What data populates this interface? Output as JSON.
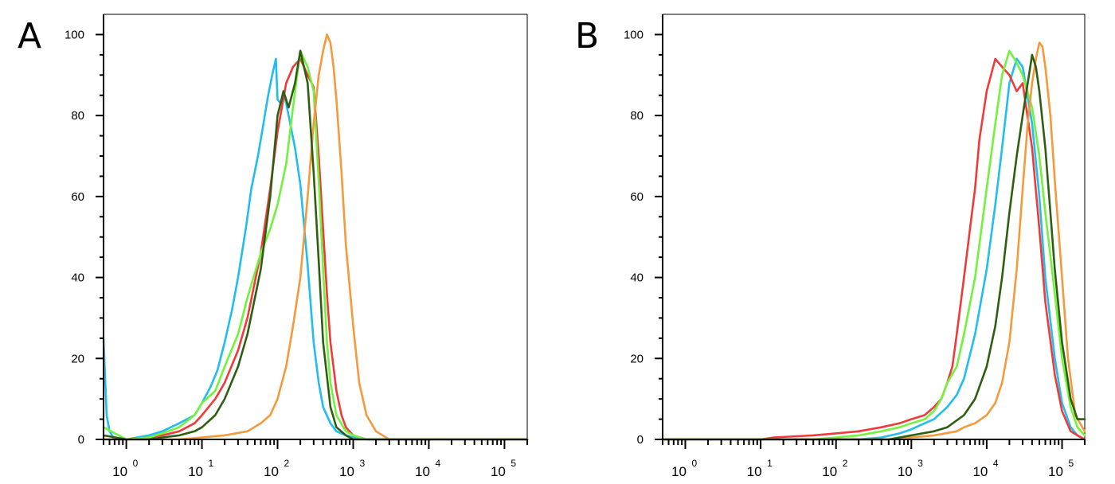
{
  "chart_data": [
    {
      "panel": "A",
      "type": "line",
      "xscale": "log",
      "xlim": [
        0.5,
        200000
      ],
      "ylim": [
        0,
        105
      ],
      "yticks": [
        "0",
        "20",
        "40",
        "60",
        "80",
        "100"
      ],
      "xticks": [
        {
          "base": "10",
          "exp": "0"
        },
        {
          "base": "10",
          "exp": "1"
        },
        {
          "base": "10",
          "exp": "2"
        },
        {
          "base": "10",
          "exp": "3"
        },
        {
          "base": "10",
          "exp": "4"
        },
        {
          "base": "10",
          "exp": "5"
        }
      ],
      "series": [
        {
          "color": "#22bdf0",
          "x": [
            0.5,
            0.55,
            0.6,
            0.7,
            1,
            2,
            3,
            5,
            8,
            10,
            13,
            16,
            20,
            25,
            30,
            38,
            45,
            55,
            65,
            75,
            85,
            95,
            100,
            110,
            120,
            140,
            170,
            200,
            250,
            300,
            350,
            400,
            500,
            600,
            800,
            1000,
            1500,
            3000,
            10000,
            200000
          ],
          "y": [
            25,
            6,
            2,
            0,
            0,
            1,
            2,
            4,
            6,
            9,
            13,
            17,
            24,
            32,
            40,
            52,
            62,
            70,
            78,
            85,
            90,
            94,
            84,
            83,
            86,
            80,
            72,
            63,
            43,
            24,
            14,
            8,
            4,
            2,
            1,
            0.5,
            0,
            0,
            0,
            0
          ]
        },
        {
          "color": "#f03a3a",
          "x": [
            0.5,
            1,
            2,
            3,
            5,
            8,
            10,
            15,
            20,
            30,
            40,
            60,
            80,
            100,
            130,
            160,
            200,
            250,
            300,
            350,
            400,
            450,
            500,
            600,
            700,
            800,
            1000,
            1500,
            3000,
            200000
          ],
          "y": [
            0,
            0,
            0.5,
            1,
            2,
            4,
            6,
            10,
            14,
            22,
            30,
            46,
            62,
            76,
            88,
            92,
            94,
            90,
            87,
            70,
            52,
            36,
            24,
            12,
            6,
            3,
            1,
            0,
            0,
            0
          ]
        },
        {
          "color": "#72f23c",
          "x": [
            0.5,
            1,
            2,
            3,
            5,
            8,
            10,
            15,
            20,
            30,
            40,
            60,
            80,
            100,
            130,
            160,
            200,
            250,
            300,
            350,
            400,
            450,
            500,
            600,
            800,
            1000,
            1500,
            200000
          ],
          "y": [
            3,
            0,
            0.5,
            1.5,
            3,
            6,
            9,
            12,
            18,
            26,
            35,
            46,
            52,
            58,
            68,
            82,
            96,
            92,
            86,
            64,
            42,
            24,
            14,
            6,
            2,
            1,
            0,
            0
          ]
        },
        {
          "color": "#f59a3c",
          "x": [
            0.5,
            1,
            2,
            5,
            10,
            20,
            40,
            60,
            80,
            100,
            130,
            160,
            200,
            250,
            300,
            350,
            400,
            450,
            500,
            550,
            600,
            700,
            800,
            1000,
            1200,
            1500,
            2000,
            3000,
            200000
          ],
          "y": [
            0,
            0,
            0,
            0,
            0.5,
            1,
            2,
            4,
            6,
            10,
            18,
            28,
            40,
            60,
            78,
            90,
            96,
            100,
            98,
            92,
            84,
            66,
            48,
            28,
            14,
            6,
            2,
            0,
            0
          ]
        },
        {
          "color": "#2e5e12",
          "x": [
            0.5,
            1,
            2,
            3,
            5,
            8,
            10,
            15,
            20,
            30,
            40,
            60,
            80,
            100,
            120,
            140,
            170,
            200,
            250,
            300,
            350,
            400,
            500,
            600,
            800,
            1000,
            200000
          ],
          "y": [
            1,
            0,
            0,
            0.5,
            1,
            2,
            3,
            6,
            10,
            18,
            26,
            42,
            60,
            80,
            86,
            82,
            88,
            96,
            88,
            66,
            44,
            24,
            8,
            3,
            1,
            0,
            0
          ]
        }
      ]
    },
    {
      "panel": "B",
      "type": "line",
      "xscale": "log",
      "xlim": [
        0.5,
        200000
      ],
      "ylim": [
        0,
        105
      ],
      "yticks": [
        "0",
        "20",
        "40",
        "60",
        "80",
        "100"
      ],
      "xticks": [
        {
          "base": "10",
          "exp": "0"
        },
        {
          "base": "10",
          "exp": "1"
        },
        {
          "base": "10",
          "exp": "2"
        },
        {
          "base": "10",
          "exp": "3"
        },
        {
          "base": "10",
          "exp": "4"
        },
        {
          "base": "10",
          "exp": "5"
        }
      ],
      "series": [
        {
          "color": "#22bdf0",
          "x": [
            0.5,
            10,
            50,
            100,
            200,
            400,
            700,
            1000,
            1500,
            2000,
            3000,
            4000,
            5000,
            7000,
            10000,
            13000,
            16000,
            20000,
            25000,
            30000,
            40000,
            50000,
            60000,
            80000,
            100000,
            130000,
            160000,
            200000
          ],
          "y": [
            0,
            0,
            0,
            0,
            0,
            0.5,
            1.5,
            2.5,
            4,
            5,
            8,
            11,
            15,
            26,
            42,
            58,
            72,
            88,
            94,
            92,
            78,
            60,
            40,
            20,
            9,
            3,
            1,
            0
          ]
        },
        {
          "color": "#f03a3a",
          "x": [
            0.5,
            10,
            15,
            50,
            100,
            200,
            400,
            700,
            1000,
            1500,
            2000,
            2500,
            3000,
            3500,
            4000,
            5000,
            6000,
            7000,
            8000,
            10000,
            13000,
            16000,
            20000,
            25000,
            30000,
            40000,
            50000,
            60000,
            80000,
            100000,
            130000,
            160000,
            200000
          ],
          "y": [
            0,
            0,
            0.5,
            1,
            1.5,
            2,
            3,
            4,
            5,
            6,
            8,
            10,
            14,
            18,
            26,
            40,
            52,
            62,
            74,
            86,
            94,
            92,
            90,
            86,
            88,
            72,
            52,
            34,
            16,
            7,
            2,
            1,
            0
          ]
        },
        {
          "color": "#72f23c",
          "x": [
            0.5,
            10,
            50,
            100,
            200,
            400,
            700,
            1000,
            1500,
            2000,
            2500,
            3000,
            4000,
            5000,
            7000,
            10000,
            13000,
            16000,
            20000,
            25000,
            30000,
            40000,
            50000,
            60000,
            80000,
            100000,
            130000,
            160000,
            200000
          ],
          "y": [
            0,
            0,
            0,
            0.5,
            1,
            2,
            3,
            4,
            5,
            7,
            10,
            14,
            18,
            26,
            40,
            62,
            78,
            90,
            96,
            93,
            90,
            82,
            70,
            56,
            36,
            20,
            8,
            3,
            1
          ]
        },
        {
          "color": "#f59a3c",
          "x": [
            0.5,
            100,
            500,
            1000,
            2000,
            4000,
            5000,
            7000,
            10000,
            13000,
            16000,
            20000,
            25000,
            30000,
            35000,
            40000,
            45000,
            50000,
            55000,
            60000,
            70000,
            80000,
            100000,
            120000,
            150000,
            200000
          ],
          "y": [
            0,
            0,
            0,
            0.5,
            1,
            2,
            3,
            4,
            6,
            9,
            14,
            24,
            42,
            62,
            78,
            88,
            94,
            98,
            97,
            92,
            80,
            64,
            40,
            20,
            6,
            2
          ]
        },
        {
          "color": "#2e5e12",
          "x": [
            0.5,
            100,
            500,
            1000,
            2000,
            3000,
            5000,
            7000,
            10000,
            13000,
            16000,
            20000,
            25000,
            30000,
            35000,
            40000,
            45000,
            50000,
            60000,
            70000,
            80000,
            100000,
            130000,
            160000,
            200000
          ],
          "y": [
            0,
            0,
            0,
            1,
            2,
            3,
            6,
            10,
            18,
            28,
            40,
            56,
            70,
            80,
            88,
            95,
            92,
            86,
            72,
            56,
            42,
            24,
            10,
            5,
            5
          ]
        }
      ]
    }
  ]
}
